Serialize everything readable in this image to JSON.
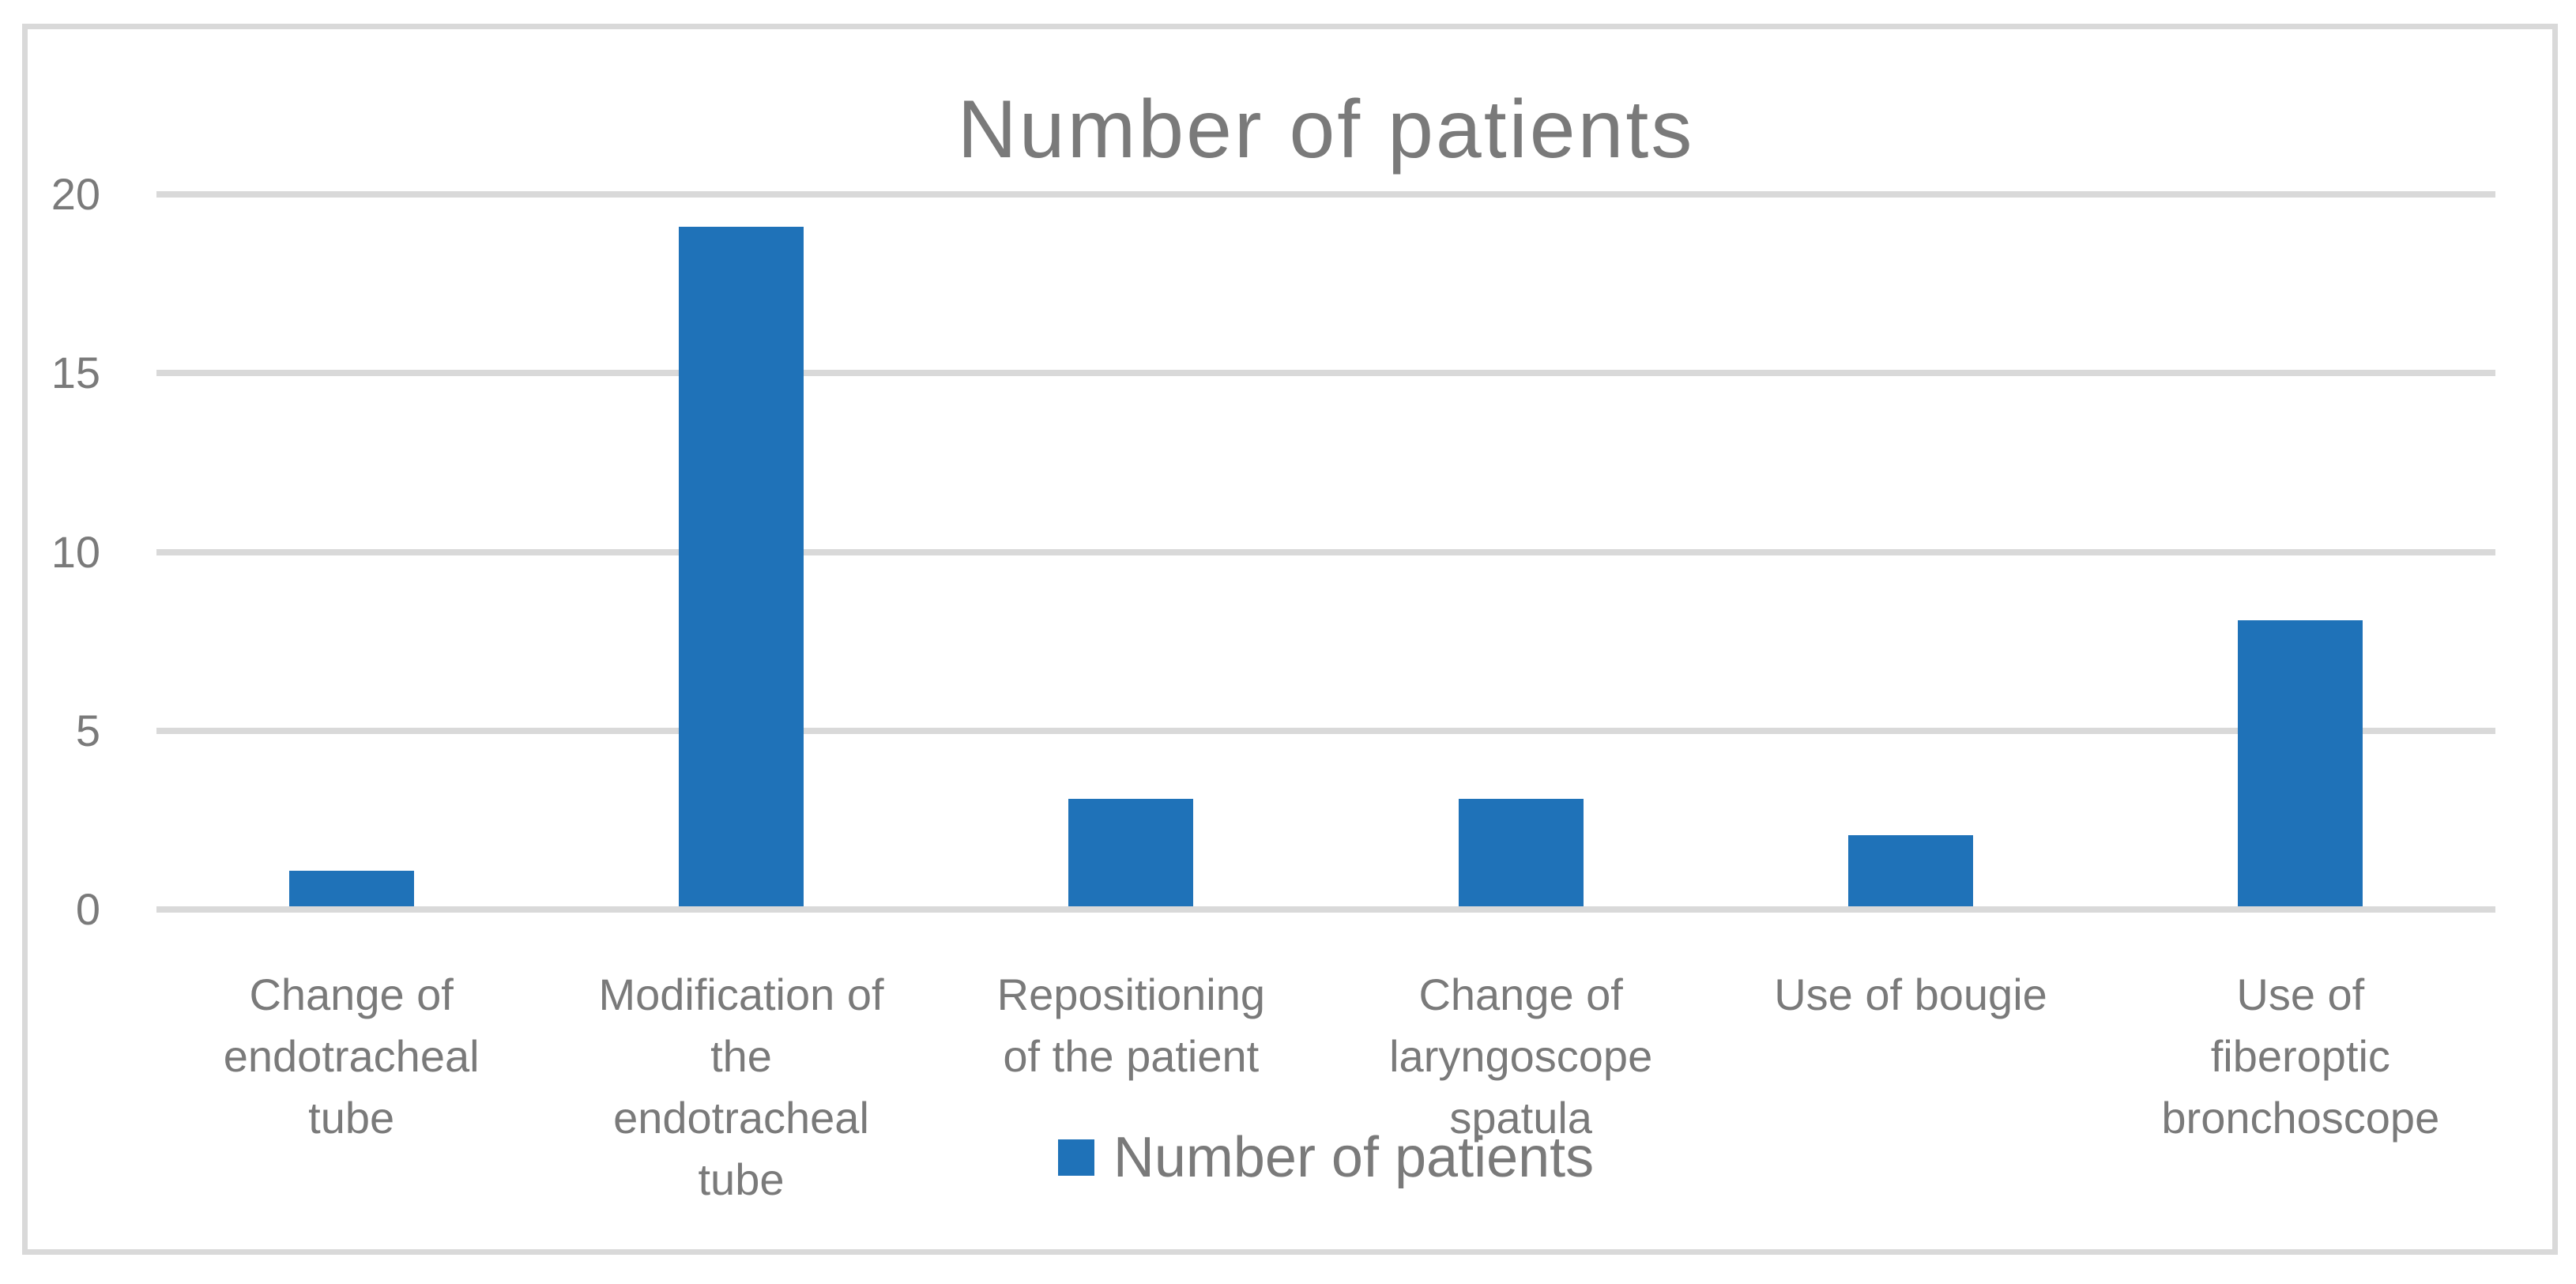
{
  "chart_data": {
    "type": "bar",
    "title": "Number of patients",
    "series_name": "Number of patients",
    "categories": [
      "Change of\nendotracheal\ntube",
      "Modification of\nthe\nendotracheal\ntube",
      "Repositioning\nof the patient",
      "Change of\nlaryngoscope\nspatula",
      "Use of bougie",
      "Use of\nfiberoptic\nbronchoscope"
    ],
    "values": [
      1,
      19,
      3,
      3,
      2,
      8
    ],
    "xlabel": "",
    "ylabel": "",
    "ylim": [
      0,
      20
    ],
    "yticks": [
      0,
      5,
      10,
      15,
      20
    ],
    "grid": true,
    "legend_position": "bottom-center",
    "colors": {
      "bar": "#1F72B8",
      "gridline": "#D9D9D9",
      "frame_border": "#D9D9D9",
      "text": "#7A7A7A",
      "background": "#FFFFFF"
    }
  }
}
